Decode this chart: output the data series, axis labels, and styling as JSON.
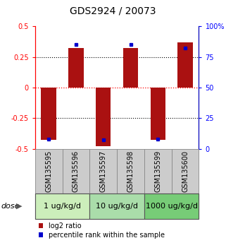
{
  "title": "GDS2924 / 20073",
  "samples": [
    "GSM135595",
    "GSM135596",
    "GSM135597",
    "GSM135598",
    "GSM135599",
    "GSM135600"
  ],
  "log2_ratio": [
    -0.43,
    0.32,
    -0.48,
    0.32,
    -0.43,
    0.37
  ],
  "percentile_rank": [
    8,
    85,
    7,
    85,
    8,
    82
  ],
  "dose_groups": [
    {
      "label": "1 ug/kg/d",
      "samples": [
        0,
        1
      ],
      "color": "#cceebb"
    },
    {
      "label": "10 ug/kg/d",
      "samples": [
        2,
        3
      ],
      "color": "#aaddaa"
    },
    {
      "label": "1000 ug/kg/d",
      "samples": [
        4,
        5
      ],
      "color": "#77cc77"
    }
  ],
  "bar_color": "#aa1111",
  "blue_color": "#0000cc",
  "ylim": [
    -0.5,
    0.5
  ],
  "yticks_left": [
    -0.5,
    -0.25,
    0,
    0.25,
    0.5
  ],
  "yticks_right": [
    0,
    25,
    50,
    75,
    100
  ],
  "hline_dotted": [
    -0.25,
    0.25
  ],
  "hline_red_dotted": 0,
  "bar_width": 0.55,
  "sample_box_color": "#cccccc",
  "dose_label": "dose",
  "legend_red": "log2 ratio",
  "legend_blue": "percentile rank within the sample",
  "title_fontsize": 10,
  "axis_label_fontsize": 7,
  "tick_fontsize": 7,
  "dose_fontsize": 8,
  "legend_fontsize": 7
}
